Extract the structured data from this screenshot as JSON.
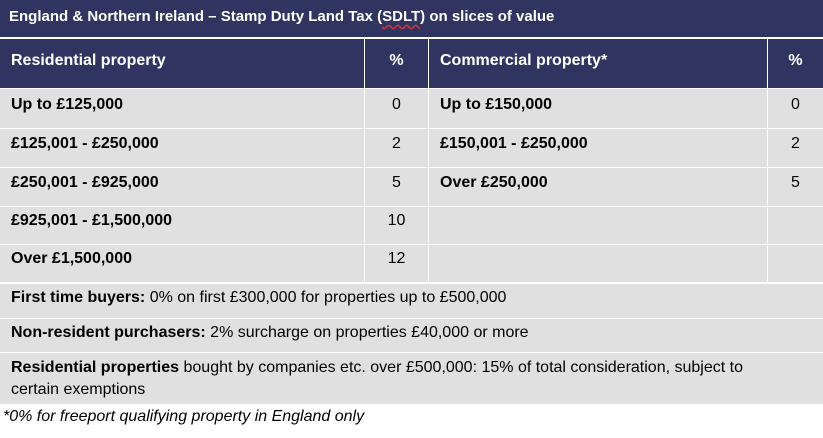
{
  "title_prefix": "England & Northern Ireland – Stamp Duty Land Tax (",
  "title_abbrev": "SDLT",
  "title_suffix": ") on slices of value",
  "headers": {
    "residential": "Residential property",
    "residential_pct": "%",
    "commercial": "Commercial property*",
    "commercial_pct": "%"
  },
  "residential": [
    {
      "band": "Up to £125,000",
      "rate": "0"
    },
    {
      "band": "£125,001 - £250,000",
      "rate": "2"
    },
    {
      "band": "£250,001 - £925,000",
      "rate": "5"
    },
    {
      "band": "£925,001 - £1,500,000",
      "rate": "10"
    },
    {
      "band": "Over £1,500,000",
      "rate": "12"
    }
  ],
  "commercial": [
    {
      "band": "Up to £150,000",
      "rate": "0"
    },
    {
      "band": "£150,001 - £250,000",
      "rate": "2"
    },
    {
      "band": "Over £250,000",
      "rate": "5"
    }
  ],
  "notes": {
    "ftb_label": "First time buyers:",
    "ftb_text": " 0% on first £300,000 for properties up to £500,000",
    "nonres_label": "Non-resident purchasers:",
    "nonres_text": " 2% surcharge on properties £40,000 or more",
    "company_label": "Residential properties",
    "company_text": " bought by companies etc. over £500,000: 15% of total consideration, subject to certain exemptions"
  },
  "footnote": "*0% for freeport qualifying property in England only"
}
